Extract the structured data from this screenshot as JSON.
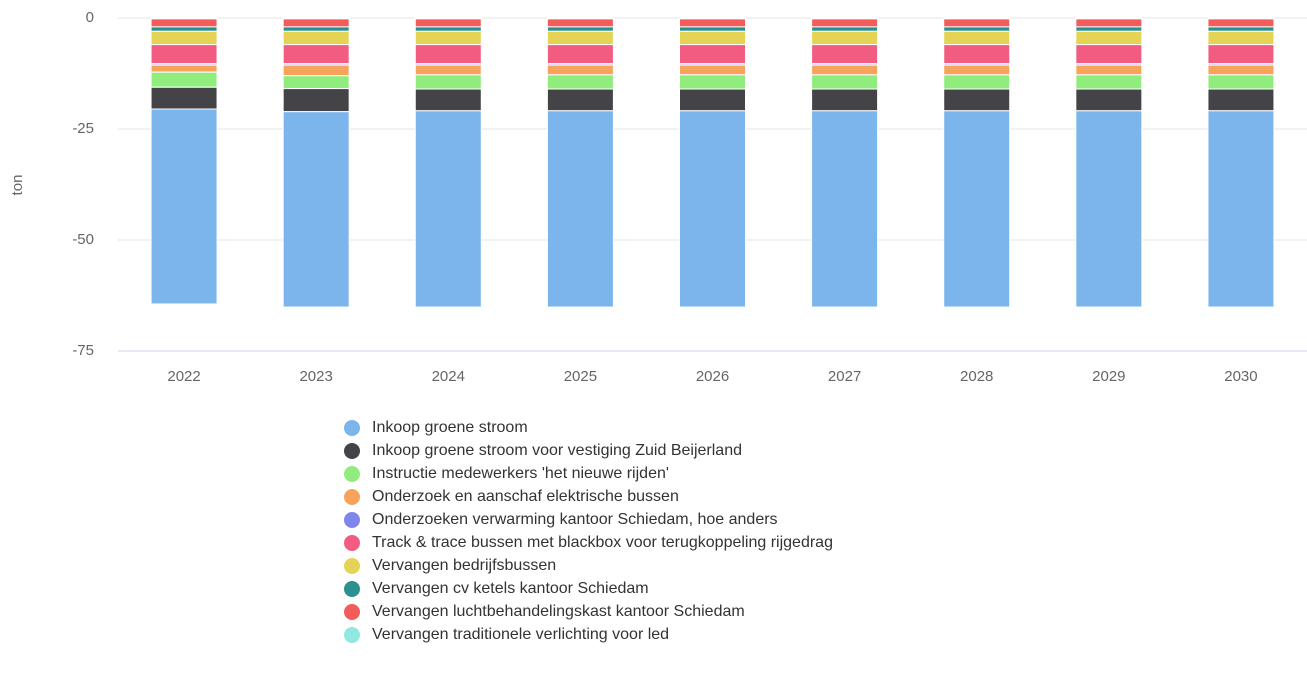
{
  "chart_data": {
    "type": "stacked-bar",
    "y_label": "ton",
    "categories": [
      "2022",
      "2023",
      "2024",
      "2025",
      "2026",
      "2027",
      "2028",
      "2029",
      "2030"
    ],
    "ylim": [
      -75,
      0
    ],
    "yticks": [
      0,
      -25,
      -50,
      -75
    ],
    "grid": true,
    "legend": "bottom",
    "series": [
      {
        "name": "Inkoop groene stroom",
        "color": "#7cb5ec",
        "values": [
          -43.9,
          -44,
          -44.2,
          -44.2,
          -44.2,
          -44.2,
          -44.2,
          -44.2,
          -44.2
        ]
      },
      {
        "name": "Inkoop groene stroom voor vestiging Zuid Beijerland",
        "color": "#434348",
        "values": [
          -4.9,
          -5.2,
          -4.9,
          -4.9,
          -4.9,
          -4.9,
          -4.9,
          -4.9,
          -4.9
        ]
      },
      {
        "name": "Instructie medewerkers 'het nieuwe rijden'",
        "color": "#90ed7d",
        "values": [
          -3.4,
          -2.9,
          -3.2,
          -3.2,
          -3.2,
          -3.2,
          -3.2,
          -3.2,
          -3.2
        ]
      },
      {
        "name": "Onderzoek en aanschaf elektrische bussen",
        "color": "#f7a35c",
        "values": [
          -1.6,
          -2.4,
          -2.2,
          -2.2,
          -2.2,
          -2.2,
          -2.2,
          -2.2,
          -2.2
        ]
      },
      {
        "name": "Onderzoeken verwarming kantoor Schiedam, hoe anders",
        "color": "#8085e9",
        "values": [
          -0.3,
          -0.3,
          -0.3,
          -0.3,
          -0.3,
          -0.3,
          -0.3,
          -0.3,
          -0.3
        ]
      },
      {
        "name": "Track & trace bussen met blackbox voor terugkoppeling rijgedrag",
        "color": "#f15c80",
        "values": [
          -4.3,
          -4.3,
          -4.3,
          -4.3,
          -4.3,
          -4.3,
          -4.3,
          -4.3,
          -4.3
        ]
      },
      {
        "name": "Vervangen bedrijfsbussen",
        "color": "#e4d354",
        "values": [
          -3,
          -3,
          -3,
          -3,
          -3,
          -3,
          -3,
          -3,
          -3
        ]
      },
      {
        "name": "Vervangen cv ketels kantoor Schiedam",
        "color": "#2b908f",
        "values": [
          -1,
          -1,
          -1,
          -1,
          -1,
          -1,
          -1,
          -1,
          -1
        ]
      },
      {
        "name": "Vervangen luchtbehandelingskast kantoor Schiedam",
        "color": "#f45b5b",
        "values": [
          -1.8,
          -1.8,
          -1.8,
          -1.8,
          -1.8,
          -1.8,
          -1.8,
          -1.8,
          -1.8
        ]
      },
      {
        "name": "Vervangen traditionele verlichting voor led",
        "color": "#91e8e1",
        "values": [
          -0.2,
          -0.2,
          -0.2,
          -0.2,
          -0.2,
          -0.2,
          -0.2,
          -0.2,
          -0.2
        ]
      }
    ]
  }
}
